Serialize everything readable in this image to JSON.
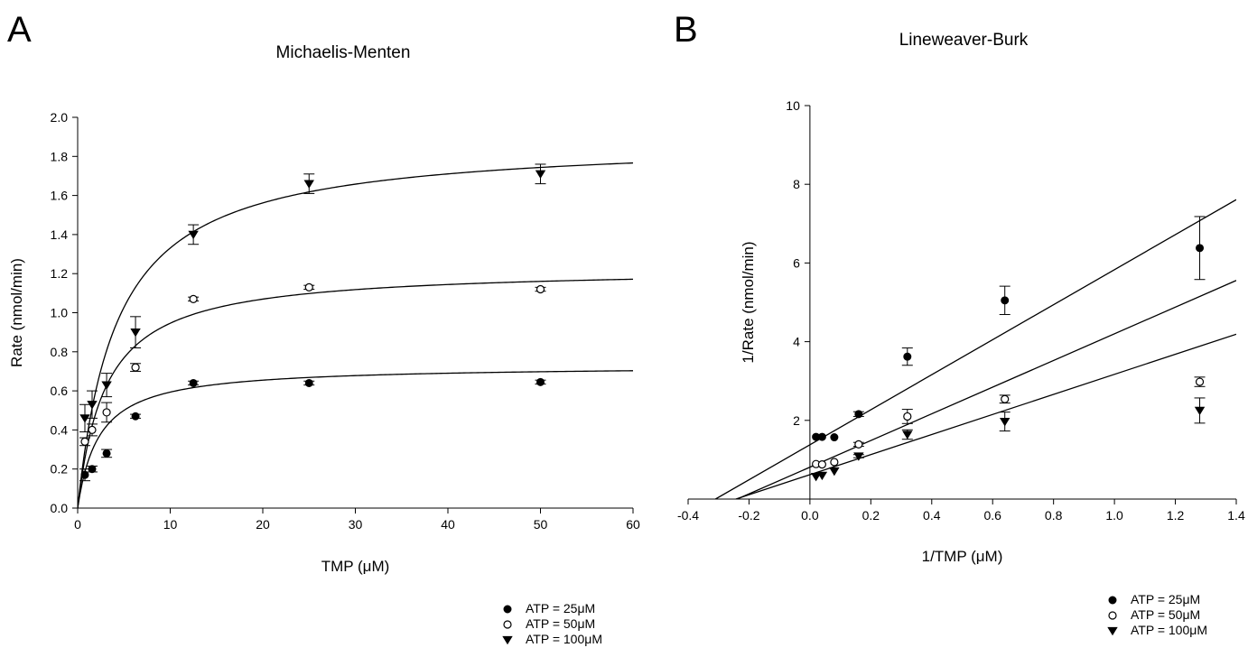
{
  "figure": {
    "panel_a": {
      "label": "A",
      "title": "Michaelis-Menten"
    },
    "panel_b": {
      "label": "B",
      "title": "Lineweaver-Burk"
    }
  },
  "chart_data": [
    {
      "type": "scatter",
      "title": "Michaelis-Menten",
      "xlabel": "TMP (μM)",
      "ylabel": "Rate (nmol/min)",
      "xlim": [
        0,
        60
      ],
      "ylim": [
        0,
        2.0
      ],
      "xticks": [
        "0",
        "10",
        "20",
        "30",
        "40",
        "50",
        "60"
      ],
      "yticks": [
        "0.0",
        "0.2",
        "0.4",
        "0.6",
        "0.8",
        "1.0",
        "1.2",
        "1.4",
        "1.6",
        "1.8",
        "2.0"
      ],
      "grid": false,
      "legend_position": "bottom-right",
      "fit_curves": [
        {
          "series": "ATP = 25μM",
          "model": "michaelis-menten",
          "vmax": 0.73,
          "km": 2.3
        },
        {
          "series": "ATP = 50μM",
          "model": "michaelis-menten",
          "vmax": 1.23,
          "km": 3.0
        },
        {
          "series": "ATP = 100μM",
          "model": "michaelis-menten",
          "vmax": 1.89,
          "km": 4.2
        }
      ],
      "series": [
        {
          "name": "ATP = 25μM",
          "marker": "filled-circle",
          "points": [
            {
              "x": 0.78,
              "y": 0.17,
              "err": 0.03
            },
            {
              "x": 1.56,
              "y": 0.2,
              "err": 0.015
            },
            {
              "x": 3.13,
              "y": 0.28,
              "err": 0.02
            },
            {
              "x": 6.25,
              "y": 0.47,
              "err": 0.01
            },
            {
              "x": 12.5,
              "y": 0.64,
              "err": 0.01
            },
            {
              "x": 25,
              "y": 0.64,
              "err": 0.01
            },
            {
              "x": 50,
              "y": 0.645,
              "err": 0.01
            }
          ]
        },
        {
          "name": "ATP = 50μM",
          "marker": "open-circle",
          "points": [
            {
              "x": 0.78,
              "y": 0.34,
              "err": 0.02
            },
            {
              "x": 1.56,
              "y": 0.4,
              "err": 0.03
            },
            {
              "x": 3.13,
              "y": 0.49,
              "err": 0.05
            },
            {
              "x": 6.25,
              "y": 0.72,
              "err": 0.02
            },
            {
              "x": 12.5,
              "y": 1.07,
              "err": 0.01
            },
            {
              "x": 25,
              "y": 1.13,
              "err": 0.01
            },
            {
              "x": 50,
              "y": 1.12,
              "err": 0.01
            }
          ]
        },
        {
          "name": "ATP = 100μM",
          "marker": "filled-triangle-down",
          "points": [
            {
              "x": 0.78,
              "y": 0.46,
              "err": 0.07
            },
            {
              "x": 1.56,
              "y": 0.53,
              "err": 0.07
            },
            {
              "x": 3.13,
              "y": 0.63,
              "err": 0.06
            },
            {
              "x": 6.25,
              "y": 0.9,
              "err": 0.08
            },
            {
              "x": 12.5,
              "y": 1.4,
              "err": 0.05
            },
            {
              "x": 25,
              "y": 1.66,
              "err": 0.05
            },
            {
              "x": 50,
              "y": 1.71,
              "err": 0.05
            }
          ]
        }
      ]
    },
    {
      "type": "scatter",
      "title": "Lineweaver-Burk",
      "xlabel": "1/TMP (μM)",
      "ylabel": "1/Rate (nmol/min)",
      "xlim": [
        -0.4,
        1.4
      ],
      "ylim": [
        0,
        10
      ],
      "xticks": [
        "-0.4",
        "-0.2",
        "0.0",
        "0.2",
        "0.4",
        "0.6",
        "0.8",
        "1.0",
        "1.2",
        "1.4"
      ],
      "yticks": [
        "2",
        "4",
        "6",
        "8",
        "10"
      ],
      "grid": false,
      "legend_position": "bottom-right",
      "fit_lines": [
        {
          "series": "ATP = 25μM",
          "slope": 4.45,
          "intercept": 1.38
        },
        {
          "series": "ATP = 50μM",
          "slope": 3.39,
          "intercept": 0.81
        },
        {
          "series": "ATP = 100μM",
          "slope": 2.55,
          "intercept": 0.62
        }
      ],
      "series": [
        {
          "name": "ATP = 25μM",
          "marker": "filled-circle",
          "points": [
            {
              "x": 0.02,
              "y": 1.58,
              "err": 0
            },
            {
              "x": 0.04,
              "y": 1.58,
              "err": 0
            },
            {
              "x": 0.08,
              "y": 1.57,
              "err": 0
            },
            {
              "x": 0.16,
              "y": 2.16,
              "err": 0.06
            },
            {
              "x": 0.32,
              "y": 3.62,
              "err": 0.22
            },
            {
              "x": 0.64,
              "y": 5.05,
              "err": 0.36
            },
            {
              "x": 1.28,
              "y": 6.38,
              "err": 0.8
            }
          ]
        },
        {
          "name": "ATP = 50μM",
          "marker": "open-circle",
          "points": [
            {
              "x": 0.02,
              "y": 0.89,
              "err": 0
            },
            {
              "x": 0.04,
              "y": 0.88,
              "err": 0
            },
            {
              "x": 0.08,
              "y": 0.94,
              "err": 0
            },
            {
              "x": 0.16,
              "y": 1.39,
              "err": 0.05
            },
            {
              "x": 0.32,
              "y": 2.1,
              "err": 0.18
            },
            {
              "x": 0.64,
              "y": 2.54,
              "err": 0.1
            },
            {
              "x": 1.28,
              "y": 2.98,
              "err": 0.12
            }
          ]
        },
        {
          "name": "ATP = 100μM",
          "marker": "filled-triangle-down",
          "points": [
            {
              "x": 0.02,
              "y": 0.57,
              "err": 0
            },
            {
              "x": 0.04,
              "y": 0.6,
              "err": 0
            },
            {
              "x": 0.08,
              "y": 0.71,
              "err": 0
            },
            {
              "x": 0.16,
              "y": 1.09,
              "err": 0.04
            },
            {
              "x": 0.32,
              "y": 1.64,
              "err": 0.12
            },
            {
              "x": 0.64,
              "y": 1.97,
              "err": 0.24
            },
            {
              "x": 1.28,
              "y": 2.25,
              "err": 0.32
            }
          ]
        }
      ]
    }
  ]
}
